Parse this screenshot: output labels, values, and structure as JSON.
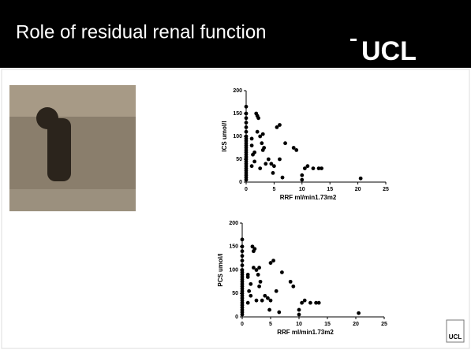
{
  "slide": {
    "title": "Role of residual renal function",
    "logo": "UCL",
    "small_logo": "UCL"
  },
  "chart_data": [
    {
      "type": "scatter",
      "x_label": "RRF ml/min1.73m2",
      "y_label": "ICS umol/l",
      "xlim": [
        0,
        25
      ],
      "xticks": [
        0,
        5,
        10,
        15,
        20,
        25
      ],
      "ylim": [
        0,
        200
      ],
      "yticks": [
        0,
        50,
        100,
        150,
        200
      ],
      "color": "#000000",
      "x": [
        0,
        0,
        0,
        0,
        0,
        0,
        0,
        0,
        0,
        0,
        0,
        0,
        0,
        0,
        0,
        0,
        0,
        0,
        0,
        0,
        0,
        0,
        0,
        0,
        0,
        0,
        1,
        1,
        1.2,
        1.5,
        1.8,
        2,
        2.2,
        2,
        2.5,
        2.8,
        3,
        3,
        3.2,
        2.5,
        3.5,
        4,
        4.5,
        5,
        4.8,
        5.5,
        6,
        6,
        6.5,
        7,
        8.5,
        9,
        10,
        10,
        10.5,
        11,
        12,
        13,
        13.5,
        20.5,
        1,
        1.5
      ],
      "values": [
        165,
        150,
        140,
        130,
        120,
        110,
        100,
        95,
        90,
        85,
        80,
        75,
        70,
        65,
        60,
        55,
        50,
        45,
        40,
        35,
        30,
        25,
        20,
        15,
        10,
        5,
        95,
        80,
        60,
        45,
        150,
        145,
        140,
        110,
        100,
        85,
        105,
        70,
        75,
        30,
        40,
        50,
        40,
        35,
        20,
        120,
        125,
        50,
        10,
        85,
        75,
        70,
        15,
        5,
        30,
        35,
        30,
        30,
        30,
        8,
        35,
        65
      ]
    },
    {
      "type": "scatter",
      "x_label": "RRF ml/min1.73m2",
      "y_label": "PCS umol/l",
      "xlim": [
        0,
        25
      ],
      "xticks": [
        0,
        5,
        10,
        15,
        20,
        25
      ],
      "ylim": [
        0,
        200
      ],
      "yticks": [
        0,
        50,
        100,
        150,
        200
      ],
      "color": "#000000",
      "x": [
        0,
        0,
        0,
        0,
        0,
        0,
        0,
        0,
        0,
        0,
        0,
        0,
        0,
        0,
        0,
        0,
        0,
        0,
        0,
        0,
        0,
        0,
        0,
        0,
        0,
        0,
        1,
        1,
        1.2,
        1.5,
        1.8,
        2,
        2.2,
        2,
        2.5,
        2.8,
        3,
        3,
        3.2,
        2.5,
        3.5,
        4,
        4.5,
        5,
        4.8,
        5,
        5.5,
        6,
        6.5,
        7,
        8.5,
        9,
        10,
        10,
        10.5,
        11,
        12,
        13,
        13.5,
        20.5,
        1,
        1.5
      ],
      "values": [
        165,
        150,
        140,
        130,
        120,
        110,
        100,
        95,
        90,
        85,
        80,
        75,
        70,
        65,
        60,
        55,
        50,
        45,
        40,
        35,
        30,
        25,
        20,
        15,
        10,
        5,
        90,
        85,
        55,
        45,
        150,
        140,
        145,
        105,
        100,
        90,
        105,
        65,
        75,
        35,
        35,
        45,
        40,
        35,
        15,
        115,
        120,
        55,
        10,
        95,
        75,
        65,
        15,
        5,
        30,
        35,
        30,
        30,
        30,
        8,
        30,
        70
      ]
    }
  ]
}
